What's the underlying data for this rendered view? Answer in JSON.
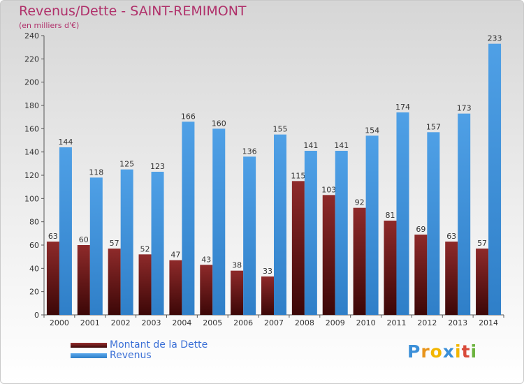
{
  "title": "Revenus/Dette - SAINT-REMIMONT",
  "subtitle": "(en milliers d'€)",
  "logo": {
    "text": "Proxiti",
    "letter_colors": [
      "#3b8fd8",
      "#e8941a",
      "#f2b600",
      "#3b8fd8",
      "#f2b600",
      "#d94a3a",
      "#6cb33f"
    ]
  },
  "colors": {
    "dette": "#7a1c1c",
    "revenus": "#3d92dc"
  },
  "chart_data": {
    "type": "bar",
    "categories": [
      "2000",
      "2001",
      "2002",
      "2003",
      "2004",
      "2005",
      "2006",
      "2007",
      "2008",
      "2009",
      "2010",
      "2011",
      "2012",
      "2013",
      "2014"
    ],
    "series": [
      {
        "name": "Montant de la Dette",
        "values": [
          63,
          60,
          57,
          52,
          47,
          43,
          38,
          33,
          115,
          103,
          92,
          81,
          69,
          63,
          57
        ]
      },
      {
        "name": "Revenus",
        "values": [
          144,
          118,
          125,
          123,
          166,
          160,
          136,
          155,
          141,
          141,
          154,
          174,
          157,
          173,
          233
        ]
      }
    ],
    "ylim": [
      0,
      240
    ],
    "yticks": [
      0,
      20,
      40,
      60,
      80,
      100,
      120,
      140,
      160,
      180,
      200,
      220,
      240
    ],
    "grid": false,
    "legend": "bottom-left"
  }
}
